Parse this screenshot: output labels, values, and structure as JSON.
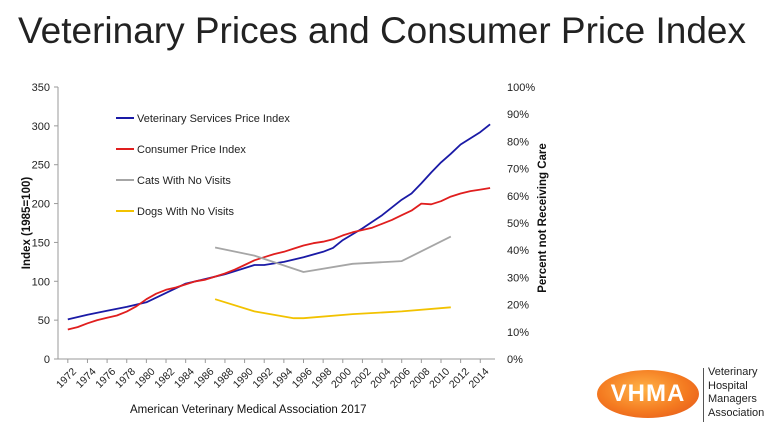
{
  "slide": {
    "title": "Veterinary Prices and Consumer Price Index",
    "source": "American Veterinary Medical Association 2017"
  },
  "logo": {
    "acronym": "VHMA",
    "name_lines": [
      "Veterinary",
      "Hospital",
      "Managers",
      "Association"
    ]
  },
  "chart_data": {
    "type": "line",
    "ylabel": "Index (1985=100)",
    "y2label": "Percent not Receiving Care",
    "ylim": [
      0,
      350
    ],
    "y_ticks": [
      "0",
      "50",
      "100",
      "150",
      "200",
      "250",
      "300",
      "350"
    ],
    "y2lim": [
      0,
      100
    ],
    "y2_ticks": [
      "0%",
      "10%",
      "20%",
      "30%",
      "40%",
      "50%",
      "60%",
      "70%",
      "80%",
      "90%",
      "100%"
    ],
    "x_ticks": [
      "1972",
      "1974",
      "1976",
      "1978",
      "1980",
      "1982",
      "1984",
      "1986",
      "1988",
      "1990",
      "1992",
      "1994",
      "1996",
      "1998",
      "2000",
      "2002",
      "2004",
      "2006",
      "2008",
      "2010",
      "2012",
      "2014"
    ],
    "legend_position": "top-left inside plot",
    "series": [
      {
        "name": "Veterinary Services Price Index",
        "axis": "left",
        "color": "#1a1aa6",
        "x": [
          1972,
          1974,
          1976,
          1978,
          1980,
          1982,
          1984,
          1986,
          1988,
          1990,
          1991,
          1992,
          1994,
          1996,
          1998,
          1999,
          2000,
          2002,
          2004,
          2006,
          2007,
          2008,
          2009,
          2010,
          2011,
          2012,
          2014,
          2015
        ],
        "y": [
          51,
          57,
          62,
          67,
          73,
          85,
          97,
          103,
          109,
          117,
          121,
          121,
          125,
          131,
          138,
          143,
          153,
          168,
          185,
          205,
          213,
          226,
          240,
          253,
          264,
          276,
          292,
          302
        ]
      },
      {
        "name": "Consumer Price Index",
        "axis": "left",
        "color": "#e01e1e",
        "x": [
          1972,
          1973,
          1974,
          1975,
          1976,
          1977,
          1978,
          1979,
          1980,
          1981,
          1982,
          1983,
          1984,
          1985,
          1986,
          1987,
          1988,
          1989,
          1990,
          1991,
          1992,
          1993,
          1994,
          1995,
          1996,
          1997,
          1998,
          1999,
          2000,
          2001,
          2002,
          2003,
          2004,
          2005,
          2006,
          2007,
          2008,
          2009,
          2010,
          2011,
          2012,
          2013,
          2014,
          2015
        ],
        "y": [
          38,
          41,
          46,
          50,
          53,
          56,
          61,
          68,
          77,
          84,
          89,
          92,
          96,
          100,
          102,
          106,
          110,
          115,
          121,
          127,
          131,
          135,
          138,
          142,
          146,
          149,
          151,
          154,
          159,
          163,
          166,
          169,
          174,
          179,
          185,
          191,
          200,
          199,
          203,
          209,
          213,
          216,
          218,
          220
        ]
      },
      {
        "name": "Cats With No Visits",
        "axis": "right",
        "color": "#a6a6a6",
        "x": [
          1987,
          1991,
          1996,
          2001,
          2006,
          2011
        ],
        "y": [
          41,
          38,
          32,
          35,
          36,
          45
        ]
      },
      {
        "name": "Dogs With No Visits",
        "axis": "right",
        "color": "#f2c200",
        "x": [
          1987,
          1991,
          1995,
          1996,
          2001,
          2006,
          2011
        ],
        "y": [
          22,
          17.5,
          15,
          15,
          16.5,
          17.5,
          19
        ]
      }
    ]
  }
}
